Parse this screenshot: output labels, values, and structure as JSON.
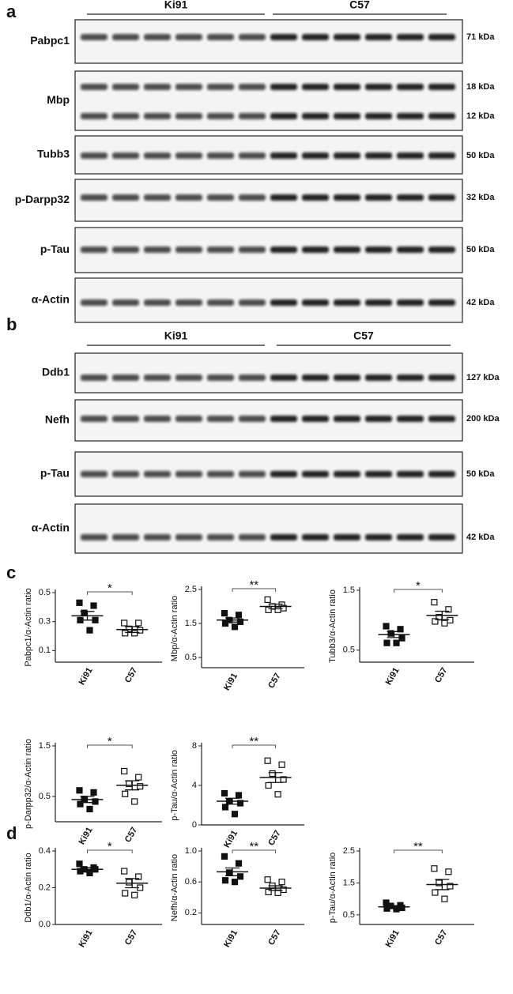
{
  "panels": [
    {
      "letter": "a",
      "groups": [
        "Ki91",
        "C57"
      ],
      "blots": [
        {
          "label": "Pabpc1",
          "markers": [
            "71 kDa"
          ]
        },
        {
          "label": "Mbp",
          "markers": [
            "18 kDa",
            "12 kDa"
          ]
        },
        {
          "label": "Tubb3",
          "markers": [
            "50 kDa"
          ]
        },
        {
          "label": "p-Darpp32",
          "markers": [
            "32 kDa"
          ]
        },
        {
          "label": "p-Tau",
          "markers": [
            "50 kDa"
          ]
        },
        {
          "label": "α-Actin",
          "markers": [
            "42 kDa"
          ]
        }
      ]
    },
    {
      "letter": "b",
      "groups": [
        "Ki91",
        "C57"
      ],
      "blots": [
        {
          "label": "Ddb1",
          "markers": [
            "127 kDa"
          ]
        },
        {
          "label": "Nefh",
          "markers": [
            "200 kDa"
          ]
        },
        {
          "label": "p-Tau",
          "markers": [
            "50 kDa"
          ]
        },
        {
          "label": "α-Actin",
          "markers": [
            "42 kDa"
          ]
        }
      ]
    },
    {
      "letter": "c"
    },
    {
      "letter": "d"
    }
  ],
  "chart_data": [
    {
      "type": "dot",
      "ylabel": "Pabpc1/α-Actin ratio",
      "categories": [
        "Ki91",
        "C57"
      ],
      "ylim": [
        0.02,
        0.5
      ],
      "yticks": [
        0.1,
        0.3,
        0.5
      ],
      "significance": "*",
      "groups": [
        {
          "values": [
            0.43,
            0.41,
            0.36,
            0.31,
            0.31,
            0.24
          ],
          "mean": 0.34,
          "sem": 0.03
        },
        {
          "values": [
            0.29,
            0.29,
            0.25,
            0.24,
            0.22,
            0.22
          ],
          "mean": 0.245,
          "sem": 0.02
        }
      ]
    },
    {
      "type": "dot",
      "ylabel": "Mbp/α-Actin ratio",
      "categories": [
        "Ki91",
        "C57"
      ],
      "ylim": [
        0.2,
        2.5
      ],
      "yticks": [
        0.5,
        1.5,
        2.5
      ],
      "significance": "**",
      "groups": [
        {
          "values": [
            1.8,
            1.75,
            1.6,
            1.55,
            1.5,
            1.4
          ],
          "mean": 1.6,
          "sem": 0.06
        },
        {
          "values": [
            2.2,
            2.05,
            2.0,
            1.95,
            1.9,
            1.9
          ],
          "mean": 2.0,
          "sem": 0.07
        }
      ]
    },
    {
      "type": "dot",
      "ylabel": "Tubb3/α-Actin ratio",
      "categories": [
        "Ki91",
        "C57"
      ],
      "ylim": [
        0.3,
        1.5
      ],
      "yticks": [
        0.5,
        1.5
      ],
      "significance": "*",
      "groups": [
        {
          "values": [
            0.9,
            0.85,
            0.78,
            0.7,
            0.62,
            0.62
          ],
          "mean": 0.76,
          "sem": 0.05
        },
        {
          "values": [
            1.3,
            1.18,
            1.05,
            1.0,
            0.98,
            0.95
          ],
          "mean": 1.08,
          "sem": 0.07
        }
      ]
    },
    {
      "type": "dot",
      "ylabel": "p-Darpp32/α-Actin ratio",
      "categories": [
        "Ki91",
        "C57"
      ],
      "ylim": [
        0,
        1.5
      ],
      "yticks": [
        0.5,
        1.5
      ],
      "significance": "*",
      "groups": [
        {
          "values": [
            0.62,
            0.58,
            0.45,
            0.4,
            0.35,
            0.25
          ],
          "mean": 0.44,
          "sem": 0.06
        },
        {
          "values": [
            1.0,
            0.88,
            0.75,
            0.7,
            0.55,
            0.4
          ],
          "mean": 0.72,
          "sem": 0.09
        }
      ]
    },
    {
      "type": "dot",
      "ylabel": "p-Tau/α-Actin ratio",
      "categories": [
        "Ki91",
        "C57"
      ],
      "ylim": [
        0,
        8
      ],
      "yticks": [
        0,
        4,
        8
      ],
      "significance": "**",
      "groups": [
        {
          "values": [
            3.2,
            3.0,
            2.4,
            2.2,
            1.8,
            1.1
          ],
          "mean": 2.4,
          "sem": 0.3
        },
        {
          "values": [
            6.5,
            6.1,
            5.2,
            4.6,
            4.0,
            3.1
          ],
          "mean": 4.8,
          "sem": 0.5
        }
      ]
    },
    {
      "type": "dot",
      "ylabel": "Ddb1/α-Actin ratio",
      "categories": [
        "Ki91",
        "C57"
      ],
      "ylim": [
        0,
        0.4
      ],
      "yticks": [
        {
          "value": 0,
          "label": "0.0"
        },
        0.2,
        0.4
      ],
      "significance": "*",
      "groups": [
        {
          "values": [
            0.33,
            0.31,
            0.3,
            0.3,
            0.29,
            0.28
          ],
          "mean": 0.3,
          "sem": 0.01
        },
        {
          "values": [
            0.29,
            0.26,
            0.23,
            0.2,
            0.17,
            0.16
          ],
          "mean": 0.225,
          "sem": 0.025
        }
      ]
    },
    {
      "type": "dot",
      "ylabel": "Nefh/α-Actin ratio",
      "categories": [
        "Ki91",
        "C57"
      ],
      "ylim": [
        0.05,
        1.0
      ],
      "yticks": [
        0.2,
        0.6,
        {
          "value": 1.0,
          "label": "1.0"
        }
      ],
      "significance": "**",
      "groups": [
        {
          "values": [
            0.93,
            0.84,
            0.72,
            0.67,
            0.62,
            0.6
          ],
          "mean": 0.73,
          "sem": 0.05
        },
        {
          "values": [
            0.63,
            0.6,
            0.55,
            0.5,
            0.47,
            0.46
          ],
          "mean": 0.52,
          "sem": 0.03
        }
      ]
    },
    {
      "type": "dot",
      "ylabel": "p-Tau/α-Actin ratio",
      "categories": [
        "Ki91",
        "C57"
      ],
      "ylim": [
        0.2,
        2.5
      ],
      "yticks": [
        0.5,
        1.5,
        2.5
      ],
      "significance": "**",
      "groups": [
        {
          "values": [
            0.88,
            0.8,
            0.78,
            0.72,
            0.7,
            0.68
          ],
          "mean": 0.75,
          "sem": 0.04
        },
        {
          "values": [
            1.95,
            1.85,
            1.5,
            1.4,
            1.2,
            1.0
          ],
          "mean": 1.45,
          "sem": 0.16
        }
      ]
    }
  ]
}
